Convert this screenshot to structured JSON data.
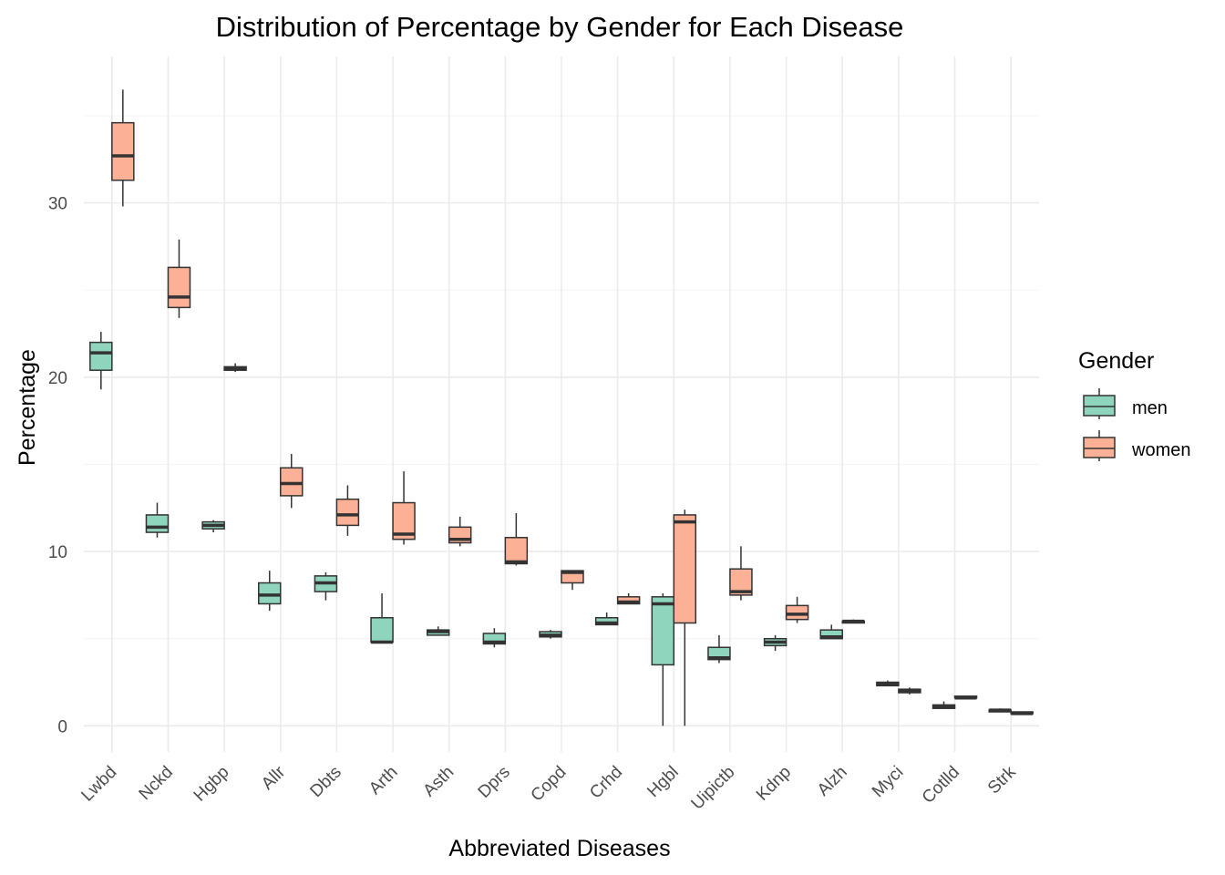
{
  "chart_data": {
    "type": "boxplot",
    "title": "Distribution of Percentage by Gender for Each Disease",
    "xlabel": "Abbreviated Diseases",
    "ylabel": "Percentage",
    "ylim": [
      -1.5,
      38.4
    ],
    "yticks": [
      0,
      10,
      20,
      30
    ],
    "grid": true,
    "legend": {
      "title": "Gender",
      "position": "right"
    },
    "categories": [
      "Lwbd",
      "Nckd",
      "Hgbp",
      "Allr",
      "Dbts",
      "Arth",
      "Asth",
      "Dprs",
      "Copd",
      "Crhd",
      "Hgbl",
      "Uipictb",
      "Kdnp",
      "Alzh",
      "Myci",
      "Cotlld",
      "Strk"
    ],
    "series": [
      {
        "name": "men",
        "color": "#8fd4bd",
        "boxes": [
          {
            "min": 19.3,
            "q1": 20.4,
            "median": 21.4,
            "q3": 22.0,
            "max": 22.6
          },
          {
            "min": 10.8,
            "q1": 11.1,
            "median": 11.4,
            "q3": 12.1,
            "max": 12.8
          },
          {
            "min": 11.1,
            "q1": 11.3,
            "median": 11.5,
            "q3": 11.7,
            "max": 11.8
          },
          {
            "min": 6.6,
            "q1": 7.0,
            "median": 7.5,
            "q3": 8.2,
            "max": 8.9
          },
          {
            "min": 7.2,
            "q1": 7.7,
            "median": 8.2,
            "q3": 8.6,
            "max": 8.8
          },
          {
            "min": 4.8,
            "q1": 4.8,
            "median": 4.8,
            "q3": 6.2,
            "max": 7.6
          },
          {
            "min": 5.2,
            "q1": 5.2,
            "median": 5.4,
            "q3": 5.5,
            "max": 5.7
          },
          {
            "min": 4.5,
            "q1": 4.7,
            "median": 4.8,
            "q3": 5.3,
            "max": 5.6
          },
          {
            "min": 5.0,
            "q1": 5.1,
            "median": 5.2,
            "q3": 5.4,
            "max": 5.5
          },
          {
            "min": 5.8,
            "q1": 5.8,
            "median": 5.9,
            "q3": 6.2,
            "max": 6.5
          },
          {
            "min": 0.0,
            "q1": 3.5,
            "median": 7.0,
            "q3": 7.4,
            "max": 7.6
          },
          {
            "min": 3.6,
            "q1": 3.8,
            "median": 3.9,
            "q3": 4.5,
            "max": 5.2
          },
          {
            "min": 4.3,
            "q1": 4.6,
            "median": 4.8,
            "q3": 5.0,
            "max": 5.2
          },
          {
            "min": 5.0,
            "q1": 5.0,
            "median": 5.1,
            "q3": 5.5,
            "max": 5.8
          },
          {
            "min": 2.3,
            "q1": 2.3,
            "median": 2.4,
            "q3": 2.5,
            "max": 2.6
          },
          {
            "min": 1.0,
            "q1": 1.0,
            "median": 1.1,
            "q3": 1.2,
            "max": 1.4
          },
          {
            "min": 0.8,
            "q1": 0.8,
            "median": 0.9,
            "q3": 0.9,
            "max": 1.0
          }
        ]
      },
      {
        "name": "women",
        "color": "#fcb095",
        "boxes": [
          {
            "min": 29.8,
            "q1": 31.3,
            "median": 32.7,
            "q3": 34.6,
            "max": 36.5
          },
          {
            "min": 23.4,
            "q1": 24.0,
            "median": 24.6,
            "q3": 26.3,
            "max": 27.9
          },
          {
            "min": 20.3,
            "q1": 20.4,
            "median": 20.5,
            "q3": 20.6,
            "max": 20.8
          },
          {
            "min": 12.5,
            "q1": 13.2,
            "median": 13.9,
            "q3": 14.8,
            "max": 15.6
          },
          {
            "min": 10.9,
            "q1": 11.5,
            "median": 12.1,
            "q3": 13.0,
            "max": 13.8
          },
          {
            "min": 10.4,
            "q1": 10.7,
            "median": 11.0,
            "q3": 12.8,
            "max": 14.6
          },
          {
            "min": 10.3,
            "q1": 10.5,
            "median": 10.7,
            "q3": 11.4,
            "max": 12.0
          },
          {
            "min": 9.2,
            "q1": 9.3,
            "median": 9.4,
            "q3": 10.8,
            "max": 12.2
          },
          {
            "min": 7.8,
            "q1": 8.2,
            "median": 8.8,
            "q3": 8.9,
            "max": 8.9
          },
          {
            "min": 7.0,
            "q1": 7.0,
            "median": 7.1,
            "q3": 7.4,
            "max": 7.6
          },
          {
            "min": 0.0,
            "q1": 5.9,
            "median": 11.7,
            "q3": 12.1,
            "max": 12.4
          },
          {
            "min": 7.2,
            "q1": 7.5,
            "median": 7.7,
            "q3": 9.0,
            "max": 10.3
          },
          {
            "min": 5.9,
            "q1": 6.1,
            "median": 6.4,
            "q3": 6.9,
            "max": 7.4
          },
          {
            "min": 5.9,
            "q1": 5.9,
            "median": 6.0,
            "q3": 6.0,
            "max": 6.1
          },
          {
            "min": 1.8,
            "q1": 1.9,
            "median": 2.0,
            "q3": 2.1,
            "max": 2.2
          },
          {
            "min": 1.6,
            "q1": 1.6,
            "median": 1.6,
            "q3": 1.7,
            "max": 1.7
          },
          {
            "min": 0.7,
            "q1": 0.7,
            "median": 0.7,
            "q3": 0.8,
            "max": 0.8
          }
        ]
      }
    ]
  }
}
